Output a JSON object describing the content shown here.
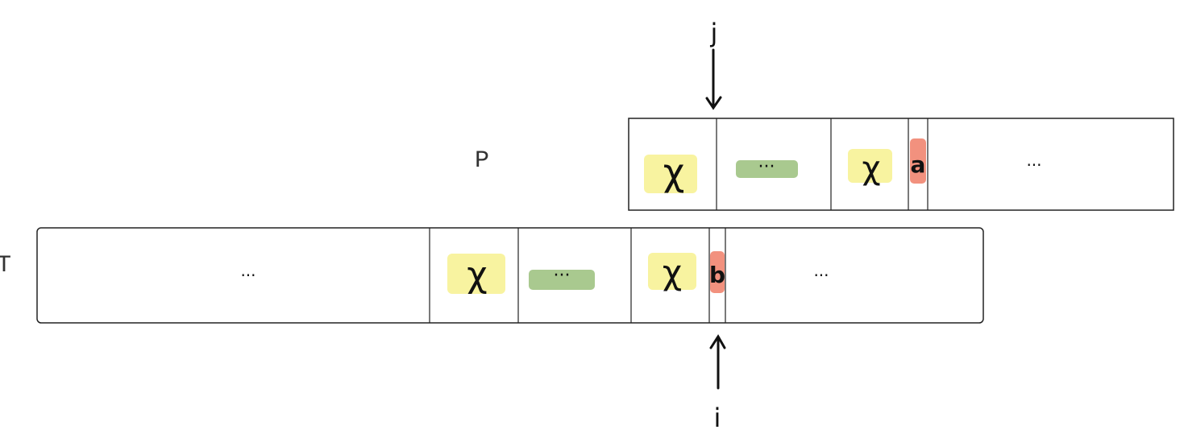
{
  "labels": {
    "pattern": "P",
    "text": "T",
    "pointer_j": "j",
    "pointer_i": "i"
  },
  "pattern_row": {
    "cells": [
      "χ",
      "···",
      "χ",
      "a",
      "···"
    ]
  },
  "text_row": {
    "cells": [
      "···",
      "χ",
      "···",
      "χ",
      "b",
      "···"
    ]
  },
  "colors": {
    "chi_highlight": "#f8f3a0",
    "ellipsis_highlight": "#a9c98f",
    "mismatch_highlight": "#f2917e",
    "stroke": "#222222"
  }
}
